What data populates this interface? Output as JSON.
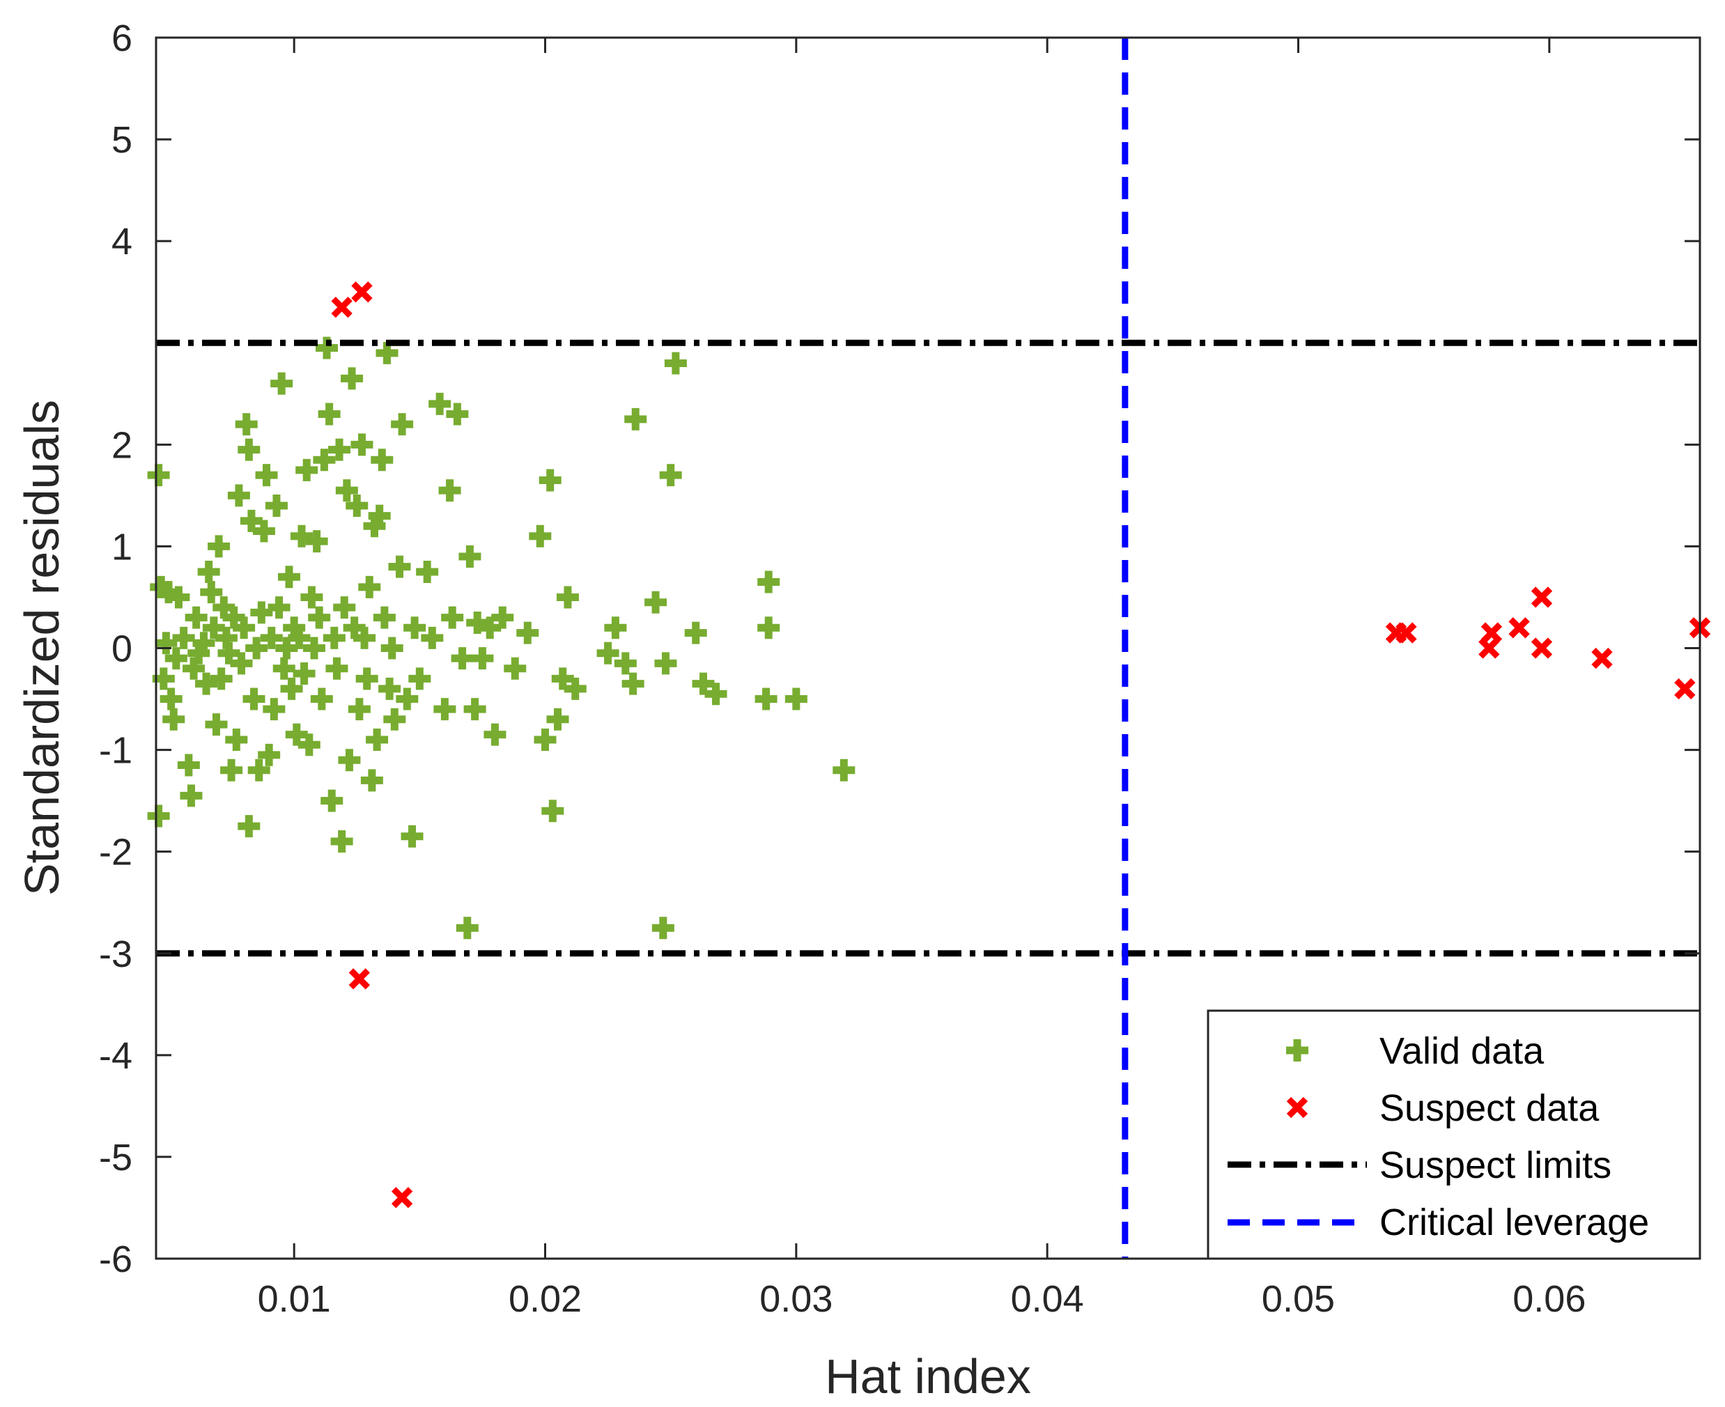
{
  "chart_data": {
    "type": "scatter",
    "xlabel": "Hat index",
    "ylabel": "Standardized residuals",
    "xlim": [
      0.0045,
      0.066
    ],
    "ylim": [
      -6,
      6
    ],
    "xticks": [
      0.01,
      0.02,
      0.03,
      0.04,
      0.05,
      0.06
    ],
    "xtick_labels": [
      "0.01",
      "0.02",
      "0.03",
      "0.04",
      "0.05",
      "0.06"
    ],
    "yticks": [
      -6,
      -5,
      -4,
      -3,
      -2,
      -1,
      0,
      1,
      2,
      4,
      5,
      6
    ],
    "ytick_labels": [
      "-6",
      "-5",
      "-4",
      "-3",
      "-2",
      "-1",
      "0",
      "1",
      "2",
      "4",
      "5",
      "6"
    ],
    "grid": false,
    "legend_position": "bottom-right",
    "reference_lines": [
      {
        "name": "Suspect limits",
        "orientation": "horizontal",
        "values": [
          3,
          -3
        ],
        "color": "#000000",
        "style": "dash-dot"
      },
      {
        "name": "Critical leverage",
        "orientation": "vertical",
        "values": [
          0.0431
        ],
        "color": "#0000ff",
        "style": "dashed"
      }
    ],
    "legend": [
      {
        "label": "Valid data",
        "marker": "plus",
        "color": "#77ac30"
      },
      {
        "label": "Suspect data",
        "marker": "x",
        "color": "#ff0000"
      },
      {
        "label": "Suspect limits",
        "marker": "dash-dot-line",
        "color": "#000000"
      },
      {
        "label": "Critical leverage",
        "marker": "dashed-line",
        "color": "#0000ff"
      }
    ],
    "series": [
      {
        "name": "Valid data",
        "marker": "plus",
        "color": "#77ac30",
        "points": [
          [
            0.0046,
            1.7
          ],
          [
            0.0046,
            -1.65
          ],
          [
            0.0047,
            0.6
          ],
          [
            0.0048,
            -0.3
          ],
          [
            0.0049,
            0.05
          ],
          [
            0.005,
            0.55
          ],
          [
            0.0051,
            -0.5
          ],
          [
            0.0052,
            -0.7
          ],
          [
            0.0053,
            -0.1
          ],
          [
            0.0054,
            0.5
          ],
          [
            0.0056,
            0.1
          ],
          [
            0.0058,
            -1.15
          ],
          [
            0.0059,
            -1.45
          ],
          [
            0.006,
            -0.2
          ],
          [
            0.0061,
            0.3
          ],
          [
            0.0062,
            -0.05
          ],
          [
            0.0064,
            0.05
          ],
          [
            0.0065,
            -0.35
          ],
          [
            0.0066,
            0.75
          ],
          [
            0.0067,
            0.55
          ],
          [
            0.0068,
            0.2
          ],
          [
            0.0069,
            -0.75
          ],
          [
            0.007,
            1.0
          ],
          [
            0.0071,
            -0.3
          ],
          [
            0.0072,
            0.4
          ],
          [
            0.0073,
            0.1
          ],
          [
            0.0074,
            -0.05
          ],
          [
            0.0075,
            -1.2
          ],
          [
            0.0076,
            0.3
          ],
          [
            0.0077,
            -0.9
          ],
          [
            0.0078,
            1.5
          ],
          [
            0.0079,
            -0.15
          ],
          [
            0.008,
            0.2
          ],
          [
            0.0081,
            2.2
          ],
          [
            0.0082,
            1.95
          ],
          [
            0.0082,
            -1.75
          ],
          [
            0.0083,
            1.25
          ],
          [
            0.0084,
            -0.5
          ],
          [
            0.0085,
            0.0
          ],
          [
            0.0086,
            -1.2
          ],
          [
            0.0087,
            0.35
          ],
          [
            0.0088,
            1.15
          ],
          [
            0.0089,
            1.7
          ],
          [
            0.009,
            -1.05
          ],
          [
            0.0091,
            0.1
          ],
          [
            0.0092,
            -0.6
          ],
          [
            0.0093,
            1.4
          ],
          [
            0.0094,
            0.4
          ],
          [
            0.0095,
            2.6
          ],
          [
            0.0096,
            -0.2
          ],
          [
            0.0097,
            0.0
          ],
          [
            0.0098,
            0.7
          ],
          [
            0.0099,
            -0.4
          ],
          [
            0.01,
            0.2
          ],
          [
            0.0101,
            -0.85
          ],
          [
            0.0102,
            0.1
          ],
          [
            0.0103,
            1.1
          ],
          [
            0.0104,
            -0.25
          ],
          [
            0.0105,
            1.75
          ],
          [
            0.0106,
            -0.95
          ],
          [
            0.0107,
            0.5
          ],
          [
            0.0108,
            0.0
          ],
          [
            0.0109,
            1.05
          ],
          [
            0.011,
            0.3
          ],
          [
            0.0111,
            -0.5
          ],
          [
            0.0112,
            1.85
          ],
          [
            0.0113,
            2.95
          ],
          [
            0.0114,
            2.3
          ],
          [
            0.0115,
            -1.5
          ],
          [
            0.0116,
            0.1
          ],
          [
            0.0117,
            -0.2
          ],
          [
            0.0118,
            1.95
          ],
          [
            0.0119,
            -1.9
          ],
          [
            0.012,
            0.4
          ],
          [
            0.0121,
            1.55
          ],
          [
            0.0122,
            -1.1
          ],
          [
            0.0123,
            2.65
          ],
          [
            0.0124,
            0.2
          ],
          [
            0.0125,
            1.4
          ],
          [
            0.0126,
            -0.6
          ],
          [
            0.0127,
            2.0
          ],
          [
            0.0128,
            0.1
          ],
          [
            0.0129,
            -0.3
          ],
          [
            0.013,
            0.6
          ],
          [
            0.0131,
            -1.3
          ],
          [
            0.0132,
            1.2
          ],
          [
            0.0133,
            -0.9
          ],
          [
            0.0134,
            1.3
          ],
          [
            0.0135,
            1.85
          ],
          [
            0.0136,
            0.3
          ],
          [
            0.0137,
            2.9
          ],
          [
            0.0138,
            -0.4
          ],
          [
            0.0139,
            0.0
          ],
          [
            0.014,
            -0.7
          ],
          [
            0.0142,
            0.8
          ],
          [
            0.0143,
            2.2
          ],
          [
            0.0145,
            -0.5
          ],
          [
            0.0147,
            -1.85
          ],
          [
            0.0148,
            0.2
          ],
          [
            0.015,
            -0.3
          ],
          [
            0.0153,
            0.75
          ],
          [
            0.0155,
            0.1
          ],
          [
            0.0158,
            2.4
          ],
          [
            0.016,
            -0.6
          ],
          [
            0.0162,
            1.55
          ],
          [
            0.0163,
            0.3
          ],
          [
            0.0165,
            2.3
          ],
          [
            0.0167,
            -0.1
          ],
          [
            0.0169,
            -2.75
          ],
          [
            0.017,
            0.9
          ],
          [
            0.0172,
            -0.6
          ],
          [
            0.0173,
            0.25
          ],
          [
            0.0175,
            -0.1
          ],
          [
            0.0178,
            0.2
          ],
          [
            0.018,
            -0.85
          ],
          [
            0.0183,
            0.3
          ],
          [
            0.0188,
            -0.2
          ],
          [
            0.0193,
            0.15
          ],
          [
            0.0198,
            1.1
          ],
          [
            0.02,
            -0.9
          ],
          [
            0.0202,
            1.65
          ],
          [
            0.0203,
            -1.6
          ],
          [
            0.0205,
            -0.7
          ],
          [
            0.0207,
            -0.3
          ],
          [
            0.0209,
            0.5
          ],
          [
            0.0212,
            -0.4
          ],
          [
            0.0225,
            -0.05
          ],
          [
            0.0228,
            0.2
          ],
          [
            0.0232,
            -0.15
          ],
          [
            0.0235,
            -0.35
          ],
          [
            0.0236,
            2.25
          ],
          [
            0.0244,
            0.45
          ],
          [
            0.0247,
            -2.75
          ],
          [
            0.0248,
            -0.15
          ],
          [
            0.025,
            1.7
          ],
          [
            0.0252,
            2.8
          ],
          [
            0.026,
            0.15
          ],
          [
            0.0263,
            -0.35
          ],
          [
            0.0268,
            -0.45
          ],
          [
            0.0288,
            -0.5
          ],
          [
            0.0289,
            0.65
          ],
          [
            0.0289,
            0.2
          ],
          [
            0.03,
            -0.5
          ],
          [
            0.0319,
            -1.2
          ]
        ]
      },
      {
        "name": "Suspect data",
        "marker": "x",
        "color": "#ff0000",
        "points": [
          [
            0.0119,
            3.35
          ],
          [
            0.0127,
            3.5
          ],
          [
            0.0126,
            -3.25
          ],
          [
            0.0143,
            -5.4
          ],
          [
            0.0539,
            0.15
          ],
          [
            0.0543,
            0.15
          ],
          [
            0.0576,
            0.0
          ],
          [
            0.0577,
            0.15
          ],
          [
            0.0588,
            0.2
          ],
          [
            0.0597,
            0.5
          ],
          [
            0.0597,
            0.0
          ],
          [
            0.0621,
            -0.1
          ],
          [
            0.0654,
            -0.4
          ],
          [
            0.066,
            0.2
          ]
        ]
      }
    ]
  }
}
